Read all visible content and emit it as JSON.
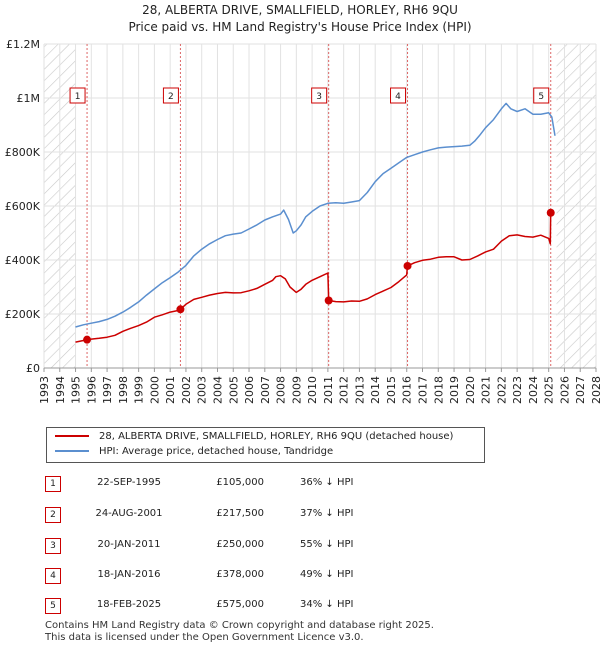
{
  "title": "28, ALBERTA DRIVE, SMALLFIELD, HORLEY, RH6 9QU",
  "subtitle": "Price paid vs. HM Land Registry's House Price Index (HPI)",
  "chart_data": {
    "type": "line",
    "x_range": [
      1993,
      2028
    ],
    "ylim": [
      0,
      1200000
    ],
    "y_ticks": [
      {
        "value": 0,
        "label": "£0"
      },
      {
        "value": 200000,
        "label": "£200K"
      },
      {
        "value": 400000,
        "label": "£400K"
      },
      {
        "value": 600000,
        "label": "£600K"
      },
      {
        "value": 800000,
        "label": "£800K"
      },
      {
        "value": 1000000,
        "label": "£1M"
      },
      {
        "value": 1200000,
        "label": "£1.2M"
      }
    ],
    "x_ticks": [
      "1993",
      "1994",
      "1995",
      "1996",
      "1997",
      "1998",
      "1999",
      "2000",
      "2001",
      "2002",
      "2003",
      "2004",
      "2005",
      "2006",
      "2007",
      "2008",
      "2009",
      "2010",
      "2011",
      "2012",
      "2013",
      "2014",
      "2015",
      "2016",
      "2017",
      "2018",
      "2019",
      "2020",
      "2021",
      "2022",
      "2023",
      "2024",
      "2025",
      "2026",
      "2027",
      "2028"
    ],
    "hatched_before": 1995,
    "hatched_after": 2025.5,
    "grid": true,
    "series": [
      {
        "name": "28, ALBERTA DRIVE, SMALLFIELD, HORLEY, RH6 9QU (detached house)",
        "color": "#cc0000",
        "x": [
          1995.0,
          1995.5,
          1995.73,
          1996.0,
          1996.5,
          1997.0,
          1997.5,
          1998.0,
          1998.5,
          1999.0,
          1999.5,
          2000.0,
          2000.5,
          2001.0,
          2001.5,
          2001.65,
          2002.0,
          2002.5,
          2003.0,
          2003.5,
          2004.0,
          2004.5,
          2005.0,
          2005.5,
          2006.0,
          2006.5,
          2007.0,
          2007.5,
          2007.7,
          2008.0,
          2008.3,
          2008.6,
          2009.0,
          2009.3,
          2009.6,
          2010.0,
          2010.5,
          2011.0,
          2011.05,
          2011.5,
          2012.0,
          2012.5,
          2013.0,
          2013.5,
          2014.0,
          2014.5,
          2015.0,
          2015.5,
          2016.0,
          2016.05,
          2016.5,
          2017.0,
          2017.5,
          2018.0,
          2018.5,
          2019.0,
          2019.5,
          2020.0,
          2020.5,
          2021.0,
          2021.5,
          2022.0,
          2022.5,
          2023.0,
          2023.5,
          2024.0,
          2024.5,
          2025.0,
          2025.1,
          2025.13,
          2025.3
        ],
        "y": [
          96000,
          102000,
          105000,
          107000,
          110000,
          114000,
          121000,
          136000,
          147000,
          157000,
          170000,
          188000,
          197000,
          207000,
          213000,
          217500,
          236000,
          254000,
          262000,
          270000,
          276000,
          280000,
          278000,
          279000,
          286000,
          295000,
          310000,
          325000,
          338000,
          342000,
          330000,
          300000,
          280000,
          292000,
          310000,
          325000,
          338000,
          352000,
          250000,
          246000,
          245000,
          248000,
          247000,
          256000,
          272000,
          285000,
          298000,
          320000,
          345000,
          378000,
          390000,
          399000,
          403000,
          410000,
          412000,
          412000,
          400000,
          402000,
          415000,
          430000,
          440000,
          470000,
          490000,
          493000,
          487000,
          485000,
          492000,
          480000,
          460000,
          575000,
          585000
        ]
      },
      {
        "name": "HPI: Average price, detached house, Tandridge",
        "color": "#5b8fcf",
        "x": [
          1995.0,
          1995.5,
          1996.0,
          1996.5,
          1997.0,
          1997.5,
          1998.0,
          1998.5,
          1999.0,
          1999.5,
          2000.0,
          2000.5,
          2001.0,
          2001.5,
          2002.0,
          2002.5,
          2003.0,
          2003.5,
          2004.0,
          2004.5,
          2005.0,
          2005.5,
          2006.0,
          2006.5,
          2007.0,
          2007.5,
          2008.0,
          2008.2,
          2008.5,
          2008.8,
          2009.0,
          2009.3,
          2009.6,
          2010.0,
          2010.5,
          2011.0,
          2011.5,
          2012.0,
          2012.5,
          2013.0,
          2013.5,
          2014.0,
          2014.5,
          2015.0,
          2015.5,
          2016.0,
          2016.5,
          2017.0,
          2017.5,
          2018.0,
          2018.5,
          2019.0,
          2019.5,
          2020.0,
          2020.3,
          2020.6,
          2021.0,
          2021.5,
          2022.0,
          2022.3,
          2022.6,
          2023.0,
          2023.5,
          2024.0,
          2024.5,
          2025.0,
          2025.2,
          2025.4
        ],
        "y": [
          152000,
          160000,
          166000,
          172000,
          180000,
          192000,
          207000,
          225000,
          245000,
          270000,
          293000,
          316000,
          335000,
          355000,
          380000,
          415000,
          440000,
          460000,
          476000,
          490000,
          496000,
          500000,
          515000,
          530000,
          548000,
          560000,
          570000,
          585000,
          550000,
          500000,
          508000,
          530000,
          560000,
          580000,
          600000,
          610000,
          612000,
          610000,
          615000,
          620000,
          650000,
          690000,
          720000,
          740000,
          760000,
          780000,
          790000,
          800000,
          808000,
          815000,
          818000,
          820000,
          822000,
          825000,
          840000,
          860000,
          890000,
          920000,
          960000,
          980000,
          960000,
          950000,
          960000,
          940000,
          940000,
          945000,
          930000,
          860000
        ]
      }
    ],
    "sales": [
      {
        "num": "1",
        "x": 1995.73,
        "y": 105000
      },
      {
        "num": "2",
        "x": 2001.65,
        "y": 217500
      },
      {
        "num": "3",
        "x": 2011.05,
        "y": 250000
      },
      {
        "num": "4",
        "x": 2016.05,
        "y": 378000
      },
      {
        "num": "5",
        "x": 2025.13,
        "y": 575000
      }
    ]
  },
  "legend": {
    "items": [
      {
        "label": "28, ALBERTA DRIVE, SMALLFIELD, HORLEY, RH6 9QU (detached house)",
        "color": "#cc0000"
      },
      {
        "label": "HPI: Average price, detached house, Tandridge",
        "color": "#5b8fcf"
      }
    ]
  },
  "sales_table": [
    {
      "num": "1",
      "date": "22-SEP-1995",
      "price": "£105,000",
      "hpi": "36% ↓ HPI"
    },
    {
      "num": "2",
      "date": "24-AUG-2001",
      "price": "£217,500",
      "hpi": "37% ↓ HPI"
    },
    {
      "num": "3",
      "date": "20-JAN-2011",
      "price": "£250,000",
      "hpi": "55% ↓ HPI"
    },
    {
      "num": "4",
      "date": "18-JAN-2016",
      "price": "£378,000",
      "hpi": "49% ↓ HPI"
    },
    {
      "num": "5",
      "date": "18-FEB-2025",
      "price": "£575,000",
      "hpi": "34% ↓ HPI"
    }
  ],
  "footer": {
    "line1": "Contains HM Land Registry data © Crown copyright and database right 2025.",
    "line2": "This data is licensed under the Open Government Licence v3.0."
  }
}
